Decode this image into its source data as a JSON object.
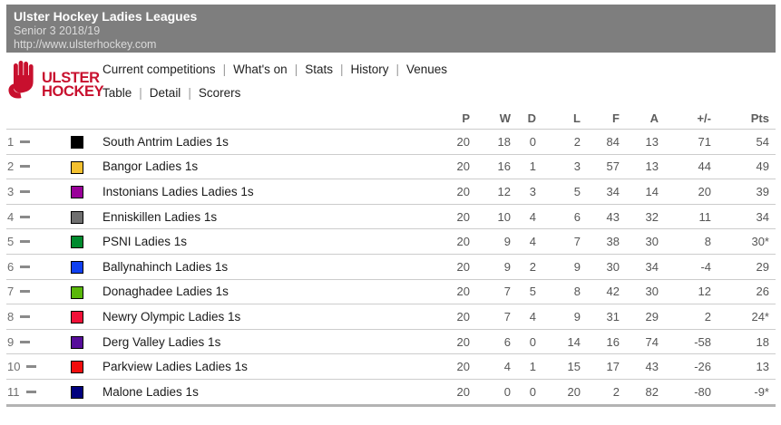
{
  "header": {
    "title": "Ulster Hockey Ladies Leagues",
    "subtitle": "Senior 3 2018/19",
    "url": "http://www.ulsterhockey.com"
  },
  "logo": {
    "line1": "ULSTER",
    "line2": "HOCKEY",
    "brand_color": "#c8102e"
  },
  "nav": {
    "primary": [
      "Current competitions",
      "What's on",
      "Stats",
      "History",
      "Venues"
    ],
    "secondary": [
      "Table",
      "Detail",
      "Scorers"
    ]
  },
  "colors": {
    "banner_bg": "#7e7e7e",
    "row_border": "#cccccc",
    "table_bottom_border": "#b3b3b3"
  },
  "table": {
    "columns": [
      "P",
      "W",
      "D",
      "L",
      "F",
      "A",
      "+/-",
      "Pts"
    ],
    "rows": [
      {
        "pos": "1",
        "team": "South Antrim Ladies 1s",
        "color": "#000000",
        "p": "20",
        "w": "18",
        "d": "0",
        "l": "2",
        "f": "84",
        "a": "13",
        "gd": "71",
        "pts": "54"
      },
      {
        "pos": "2",
        "team": "Bangor Ladies 1s",
        "color": "#f3c02f",
        "p": "20",
        "w": "16",
        "d": "1",
        "l": "3",
        "f": "57",
        "a": "13",
        "gd": "44",
        "pts": "49"
      },
      {
        "pos": "3",
        "team": "Instonians Ladies Ladies 1s",
        "color": "#990099",
        "p": "20",
        "w": "12",
        "d": "3",
        "l": "5",
        "f": "34",
        "a": "14",
        "gd": "20",
        "pts": "39"
      },
      {
        "pos": "4",
        "team": "Enniskillen Ladies 1s",
        "color": "#6f6f6f",
        "p": "20",
        "w": "10",
        "d": "4",
        "l": "6",
        "f": "43",
        "a": "32",
        "gd": "11",
        "pts": "34"
      },
      {
        "pos": "5",
        "team": "PSNI Ladies 1s",
        "color": "#008a2e",
        "p": "20",
        "w": "9",
        "d": "4",
        "l": "7",
        "f": "38",
        "a": "30",
        "gd": "8",
        "pts": "30*"
      },
      {
        "pos": "6",
        "team": "Ballynahinch Ladies 1s",
        "color": "#1040f0",
        "p": "20",
        "w": "9",
        "d": "2",
        "l": "9",
        "f": "30",
        "a": "34",
        "gd": "-4",
        "pts": "29"
      },
      {
        "pos": "7",
        "team": "Donaghadee Ladies 1s",
        "color": "#5ab80a",
        "p": "20",
        "w": "7",
        "d": "5",
        "l": "8",
        "f": "42",
        "a": "30",
        "gd": "12",
        "pts": "26"
      },
      {
        "pos": "8",
        "team": "Newry Olympic Ladies 1s",
        "color": "#f01038",
        "p": "20",
        "w": "7",
        "d": "4",
        "l": "9",
        "f": "31",
        "a": "29",
        "gd": "2",
        "pts": "24*"
      },
      {
        "pos": "9",
        "team": "Derg Valley Ladies 1s",
        "color": "#560d9a",
        "p": "20",
        "w": "6",
        "d": "0",
        "l": "14",
        "f": "16",
        "a": "74",
        "gd": "-58",
        "pts": "18"
      },
      {
        "pos": "10",
        "team": "Parkview Ladies Ladies 1s",
        "color": "#f20d0d",
        "p": "20",
        "w": "4",
        "d": "1",
        "l": "15",
        "f": "17",
        "a": "43",
        "gd": "-26",
        "pts": "13"
      },
      {
        "pos": "11",
        "team": "Malone Ladies 1s",
        "color": "#00007e",
        "p": "20",
        "w": "0",
        "d": "0",
        "l": "20",
        "f": "2",
        "a": "82",
        "gd": "-80",
        "pts": "-9*"
      }
    ]
  }
}
